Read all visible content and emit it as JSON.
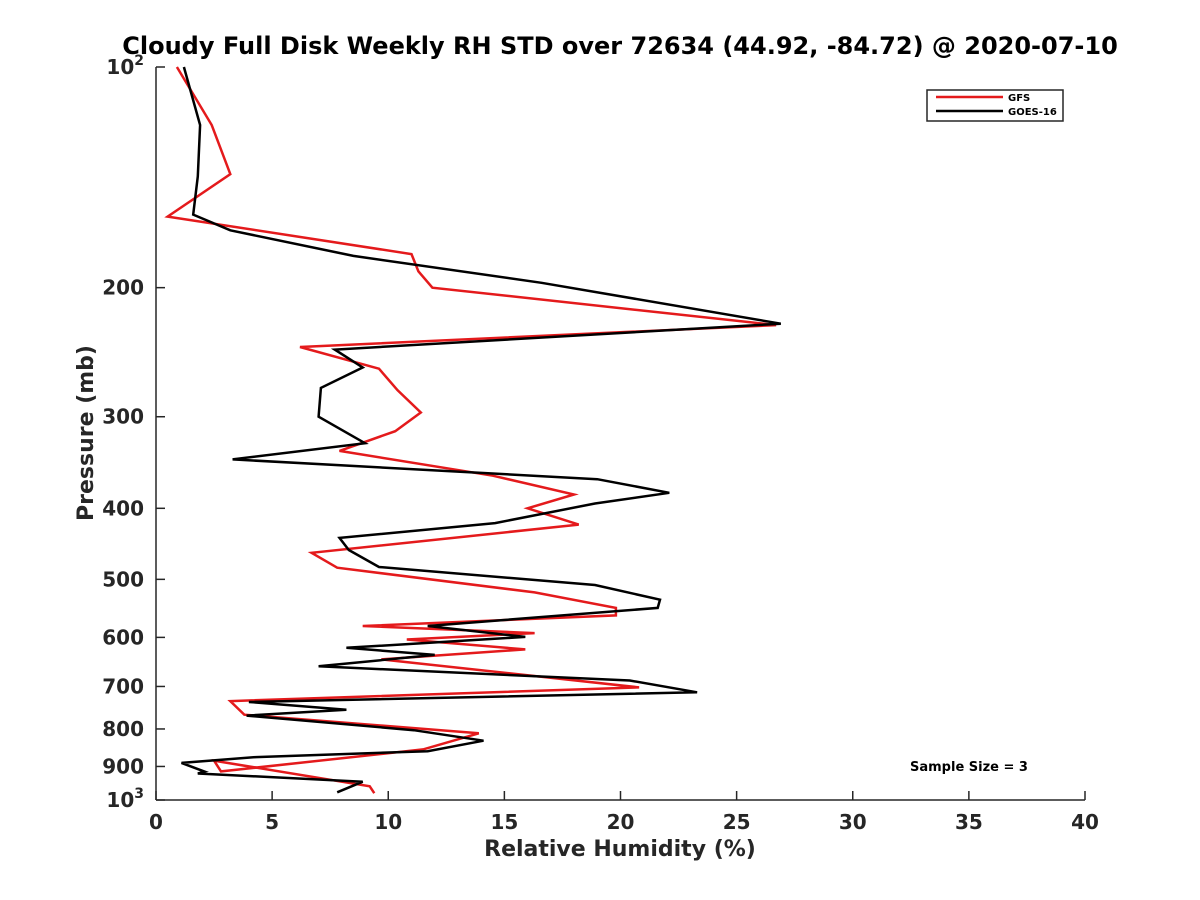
{
  "chart_data": {
    "type": "line",
    "title": "Cloudy Full Disk Weekly RH STD over 72634 (44.92, -84.72) @ 2020-07-10",
    "xlabel": "Relative Humidity (%)",
    "ylabel": "Pressure (mb)",
    "xlim": [
      0,
      40
    ],
    "ylim": [
      100,
      1000
    ],
    "y_scale": "log",
    "y_reversed": true,
    "x_ticks": [
      "0",
      "5",
      "10",
      "15",
      "20",
      "25",
      "30",
      "35",
      "40"
    ],
    "y_ticks": [
      {
        "value": 100,
        "label": "10",
        "sup": "2"
      },
      {
        "value": 200,
        "label": "200",
        "sup": ""
      },
      {
        "value": 300,
        "label": "300",
        "sup": ""
      },
      {
        "value": 400,
        "label": "400",
        "sup": ""
      },
      {
        "value": 500,
        "label": "500",
        "sup": ""
      },
      {
        "value": 600,
        "label": "600",
        "sup": ""
      },
      {
        "value": 700,
        "label": "700",
        "sup": ""
      },
      {
        "value": 800,
        "label": "800",
        "sup": ""
      },
      {
        "value": 900,
        "label": "900",
        "sup": ""
      },
      {
        "value": 1000,
        "label": "10",
        "sup": "3"
      }
    ],
    "grid": false,
    "legend_position": "top-right",
    "series": [
      {
        "name": "GFS",
        "color": "#e41a1c",
        "x": [
          0.9,
          2.4,
          3.2,
          0.5,
          11.0,
          11.3,
          11.9,
          26.7,
          6.2,
          9.6,
          10.4,
          11.4,
          10.3,
          7.9,
          14.5,
          18.0,
          16.0,
          18.2,
          6.7,
          7.8,
          16.3,
          19.8,
          19.8,
          8.9,
          16.3,
          10.8,
          15.9,
          9.7,
          20.8,
          3.2,
          3.8,
          13.9,
          11.5,
          2.8,
          2.5,
          9.2,
          9.4
        ],
        "y": [
          100,
          120,
          140,
          160,
          180,
          190,
          200,
          225,
          241,
          258,
          276,
          296,
          314,
          334,
          361,
          383,
          400,
          421,
          460,
          482,
          521,
          547,
          560,
          579,
          592,
          604,
          623,
          643,
          702,
          733,
          765,
          811,
          853,
          914,
          884,
          958,
          979
        ]
      },
      {
        "name": "GOES-16",
        "color": "#000000",
        "x": [
          1.2,
          1.9,
          1.8,
          1.6,
          3.2,
          8.5,
          16.6,
          26.9,
          7.7,
          8.9,
          7.1,
          7.0,
          9.0,
          3.3,
          19.0,
          22.1,
          18.9,
          14.6,
          7.9,
          8.3,
          9.6,
          18.9,
          21.7,
          21.6,
          11.7,
          15.9,
          8.2,
          12.0,
          7.0,
          20.4,
          23.3,
          4.0,
          8.2,
          3.9,
          11.1,
          14.1,
          11.7,
          4.3,
          1.1,
          2.1,
          1.8,
          8.9,
          7.8
        ],
        "y": [
          100,
          120,
          141,
          159,
          167,
          181,
          197,
          224,
          243,
          257,
          274,
          300,
          326,
          343,
          365,
          381,
          394,
          419,
          439,
          456,
          481,
          509,
          533,
          547,
          579,
          599,
          620,
          634,
          657,
          687,
          713,
          735,
          753,
          767,
          803,
          830,
          858,
          874,
          890,
          915,
          920,
          944,
          976
        ]
      }
    ],
    "annotations": [
      "Sample Size = 3"
    ]
  }
}
